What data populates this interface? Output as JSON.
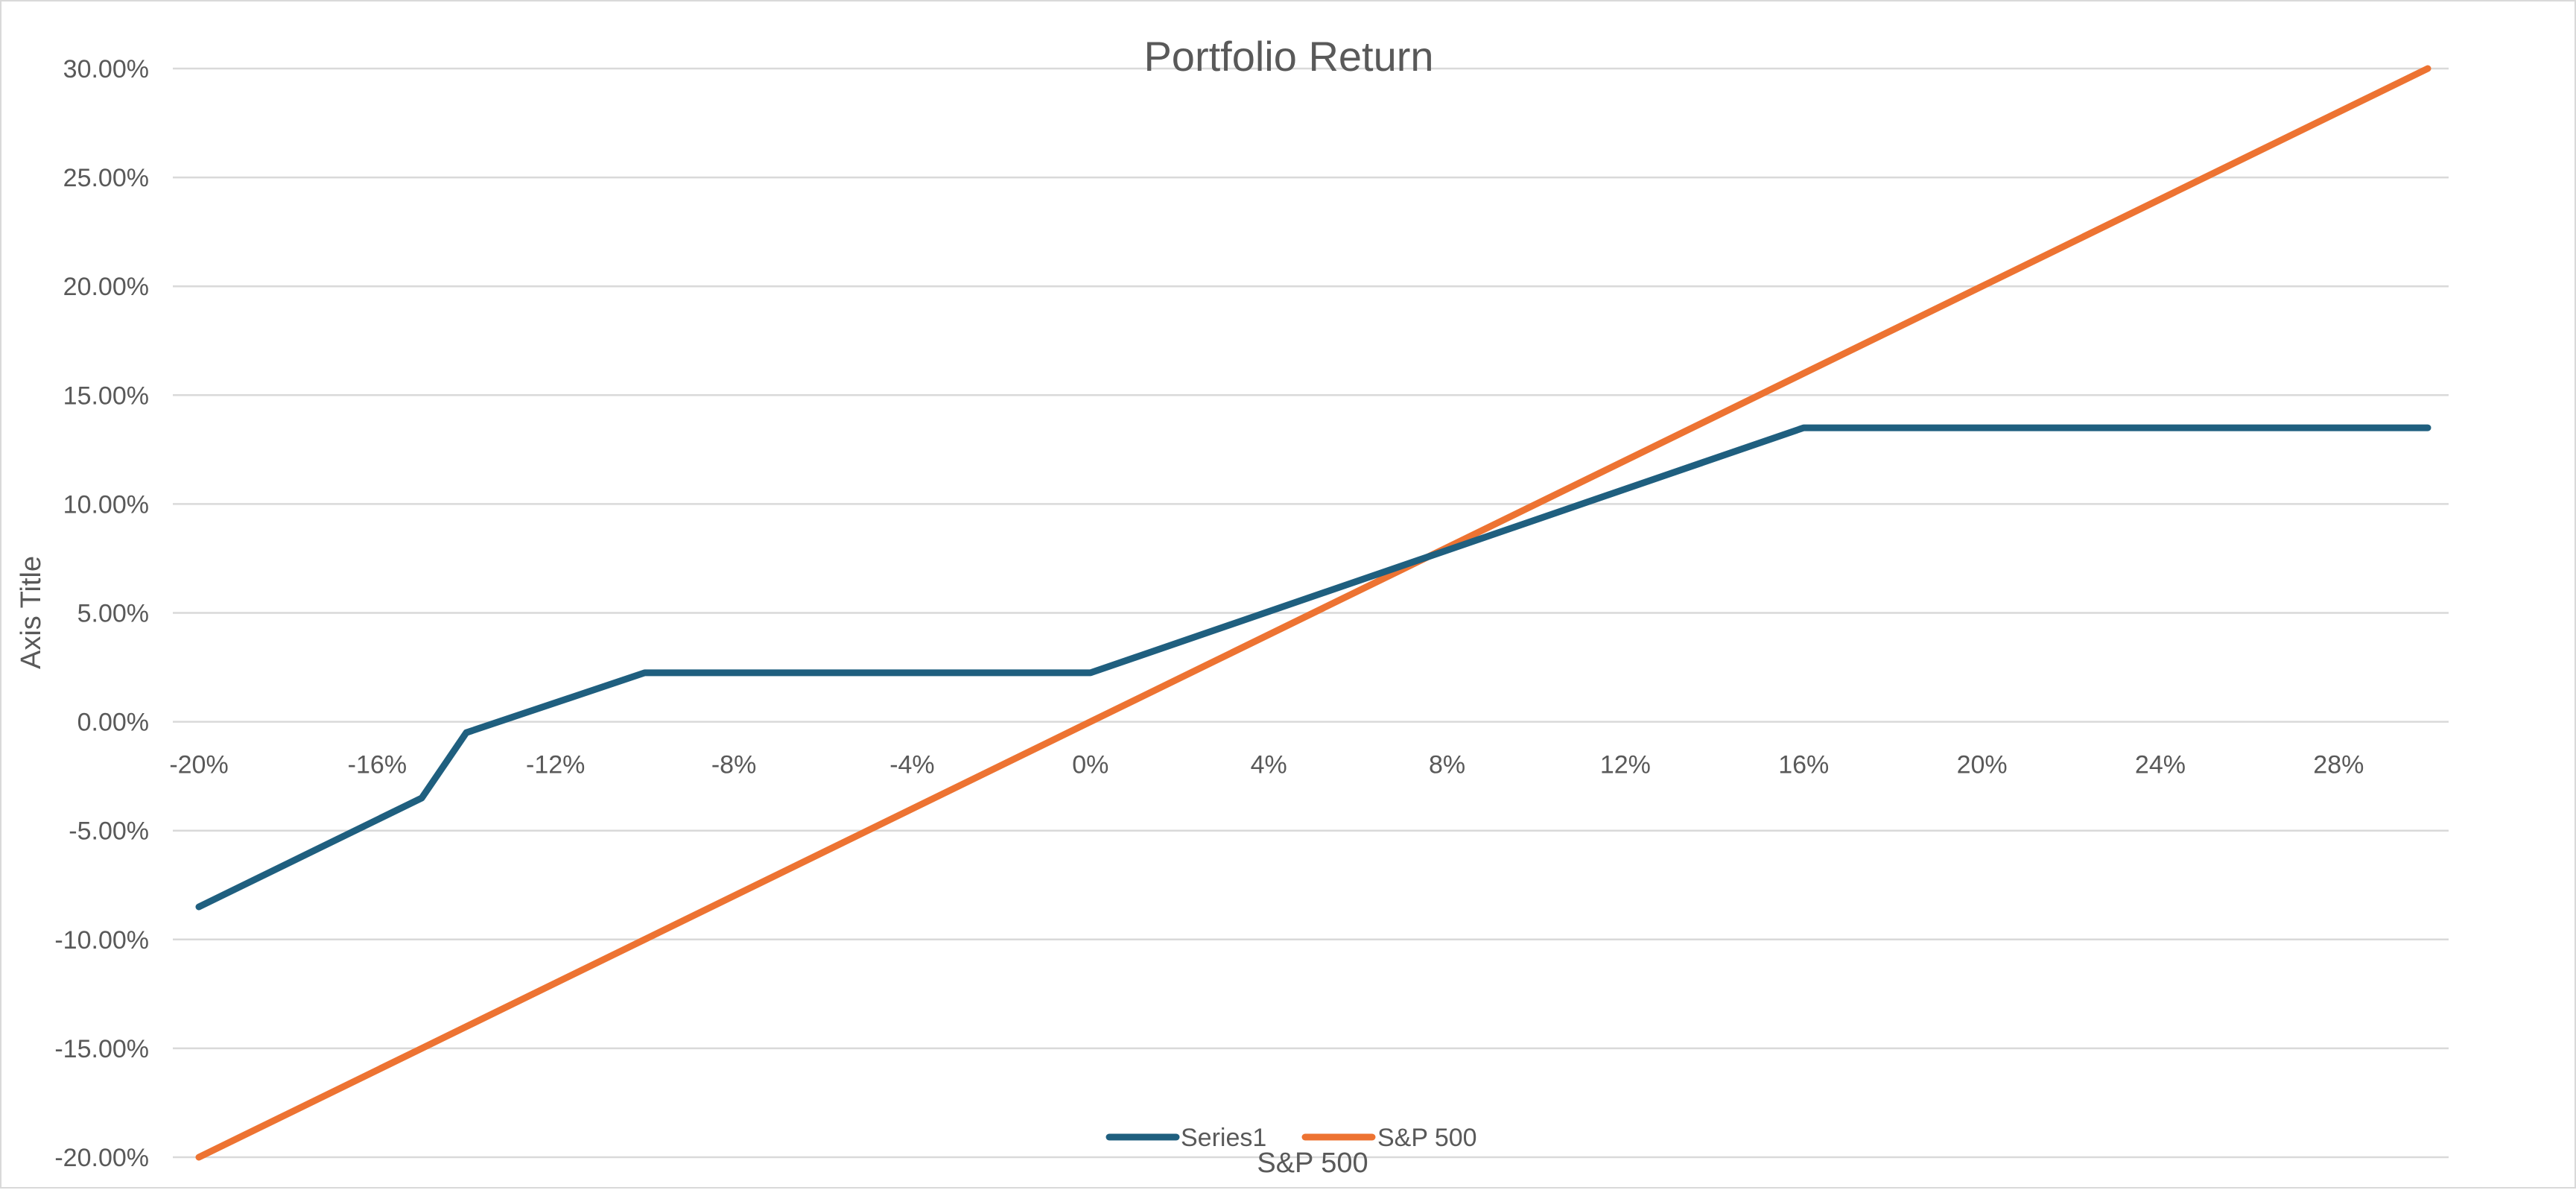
{
  "chart_data": {
    "type": "line",
    "title": "Portfolio Return",
    "xlabel": "S&P 500",
    "ylabel": "Axis Title",
    "x": [
      -0.2,
      -0.15,
      -0.14,
      -0.1,
      0.0,
      0.16,
      0.3
    ],
    "x_tick_values": [
      -0.2,
      -0.16,
      -0.12,
      -0.08,
      -0.04,
      0.0,
      0.04,
      0.08,
      0.12,
      0.16,
      0.2,
      0.24,
      0.28
    ],
    "x_tick_labels": [
      "-20%",
      "-16%",
      "-12%",
      "-8%",
      "-4%",
      "0%",
      "4%",
      "8%",
      "12%",
      "16%",
      "20%",
      "24%",
      "28%"
    ],
    "xlim": [
      -0.2,
      0.3
    ],
    "ylim": [
      -0.2,
      0.3
    ],
    "y_tick_values": [
      0.3,
      0.25,
      0.2,
      0.15,
      0.1,
      0.05,
      0.0,
      -0.05,
      -0.1,
      -0.15,
      -0.2
    ],
    "y_tick_labels": [
      "30.00%",
      "25.00%",
      "20.00%",
      "15.00%",
      "10.00%",
      "5.00%",
      "0.00%",
      "-5.00%",
      "-10.00%",
      "-15.00%",
      "-20.00%"
    ],
    "grid": true,
    "legend_position": "bottom",
    "series": [
      {
        "name": "Series1",
        "color": "#1f5f7f",
        "values": [
          -0.085,
          -0.035,
          -0.005,
          0.0225,
          0.0225,
          0.135,
          0.135
        ]
      },
      {
        "name": "S&P 500",
        "color": "#ed7332",
        "values": [
          -0.2,
          -0.15,
          -0.14,
          -0.1,
          0.0,
          0.16,
          0.3
        ]
      }
    ]
  }
}
